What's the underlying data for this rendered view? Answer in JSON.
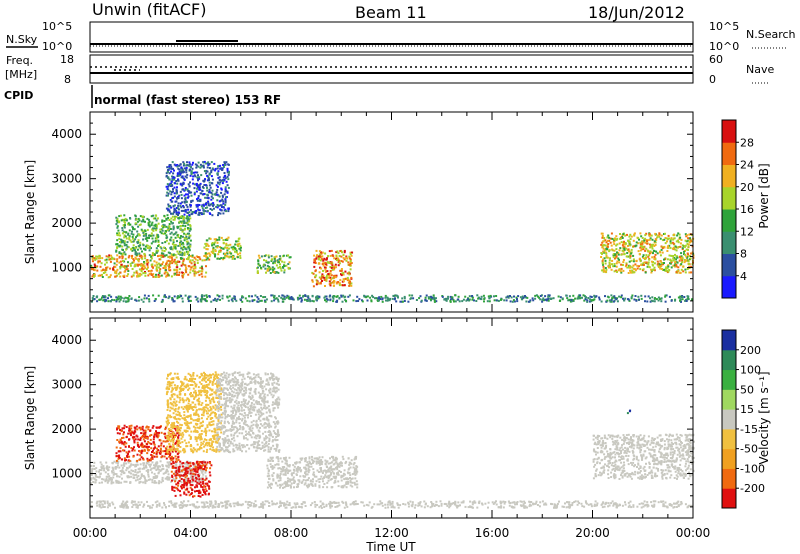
{
  "header": {
    "station": "Unwin (fitACF)",
    "beam": "Beam 11",
    "date": "18/Jun/2012"
  },
  "top_panels": {
    "nsky_label": "N.Sky",
    "nsearch_label": "N.Search",
    "freq_label": "Freq.",
    "freq_unit": "[MHz]",
    "nave_label": "Nave",
    "cpid_label": "CPID",
    "cpid_text": "normal (fast stereo) 153 RF",
    "noise_ticks": [
      "10^5",
      "10^0"
    ],
    "freq_ticks": [
      "18",
      "8"
    ],
    "nave_ticks": [
      "60",
      "0"
    ]
  },
  "colors": {
    "power_scale": [
      "#1a1aff",
      "#2b4fa0",
      "#3a8f70",
      "#2fa33a",
      "#a8d42a",
      "#f0b020",
      "#f06a10",
      "#d81010"
    ],
    "velocity_scale": [
      "#e01010",
      "#f06a10",
      "#f0a020",
      "#f0c040",
      "#c8c8c0",
      "#a0d860",
      "#3ab040",
      "#2e8a58",
      "#1a2fa0"
    ]
  },
  "chart_data": [
    {
      "type": "heatmap",
      "title": "Power",
      "ylabel": "Slant Range [km]",
      "xlabel": "",
      "ylim": [
        0,
        4500
      ],
      "y_ticks": [
        "1000",
        "2000",
        "3000",
        "4000"
      ],
      "colorbar_label": "Power [dB]",
      "colorbar_ticks": [
        "4",
        "8",
        "12",
        "16",
        "20",
        "24",
        "28"
      ],
      "colorbar_range": [
        0,
        32
      ],
      "scatter_regions": [
        {
          "t": [
            0.0,
            4.6
          ],
          "range": [
            800,
            1300
          ],
          "value": 22
        },
        {
          "t": [
            1.0,
            4.0
          ],
          "range": [
            1300,
            2200
          ],
          "value": 14
        },
        {
          "t": [
            3.0,
            5.5
          ],
          "range": [
            2200,
            3400
          ],
          "value": 6
        },
        {
          "t": [
            4.5,
            6.0
          ],
          "range": [
            1200,
            1700
          ],
          "value": 18
        },
        {
          "t": [
            6.6,
            8.0
          ],
          "range": [
            900,
            1300
          ],
          "value": 16
        },
        {
          "t": [
            8.8,
            10.4
          ],
          "range": [
            600,
            1400
          ],
          "value": 24
        },
        {
          "t": [
            20.3,
            24.0
          ],
          "range": [
            900,
            1800
          ],
          "value": 20
        },
        {
          "t": [
            0.0,
            24.0
          ],
          "range": [
            250,
            400
          ],
          "value": 10
        }
      ]
    },
    {
      "type": "heatmap",
      "title": "Velocity",
      "ylabel": "Slant Range [km]",
      "xlabel": "Time UT",
      "ylim": [
        0,
        4500
      ],
      "y_ticks": [
        "1000",
        "2000",
        "3000",
        "4000"
      ],
      "x_ticks": [
        "00:00",
        "04:00",
        "08:00",
        "12:00",
        "16:00",
        "20:00",
        "00:00"
      ],
      "colorbar_label": "Velocity [m s⁻¹]",
      "colorbar_ticks": [
        "-200",
        "-100",
        "-50",
        "-15",
        "15",
        "50",
        "100",
        "200"
      ],
      "colorbar_range": [
        -250,
        250
      ],
      "scatter_regions": [
        {
          "t": [
            0.0,
            4.6
          ],
          "range": [
            800,
            1300
          ],
          "value": 0
        },
        {
          "t": [
            3.2,
            4.8
          ],
          "range": [
            500,
            1300
          ],
          "value": -220
        },
        {
          "t": [
            1.0,
            3.5
          ],
          "range": [
            1300,
            2100
          ],
          "value": -200
        },
        {
          "t": [
            3.0,
            5.2
          ],
          "range": [
            1500,
            3300
          ],
          "value": -40
        },
        {
          "t": [
            5.0,
            7.5
          ],
          "range": [
            1500,
            3300
          ],
          "value": 0
        },
        {
          "t": [
            7.0,
            10.6
          ],
          "range": [
            700,
            1400
          ],
          "value": 0
        },
        {
          "t": [
            20.0,
            24.0
          ],
          "range": [
            900,
            1900
          ],
          "value": 0
        },
        {
          "t": [
            21.3,
            21.5
          ],
          "range": [
            2350,
            2450
          ],
          "value": 210
        },
        {
          "t": [
            0.0,
            24.0
          ],
          "range": [
            250,
            400
          ],
          "value": 20
        }
      ]
    }
  ]
}
